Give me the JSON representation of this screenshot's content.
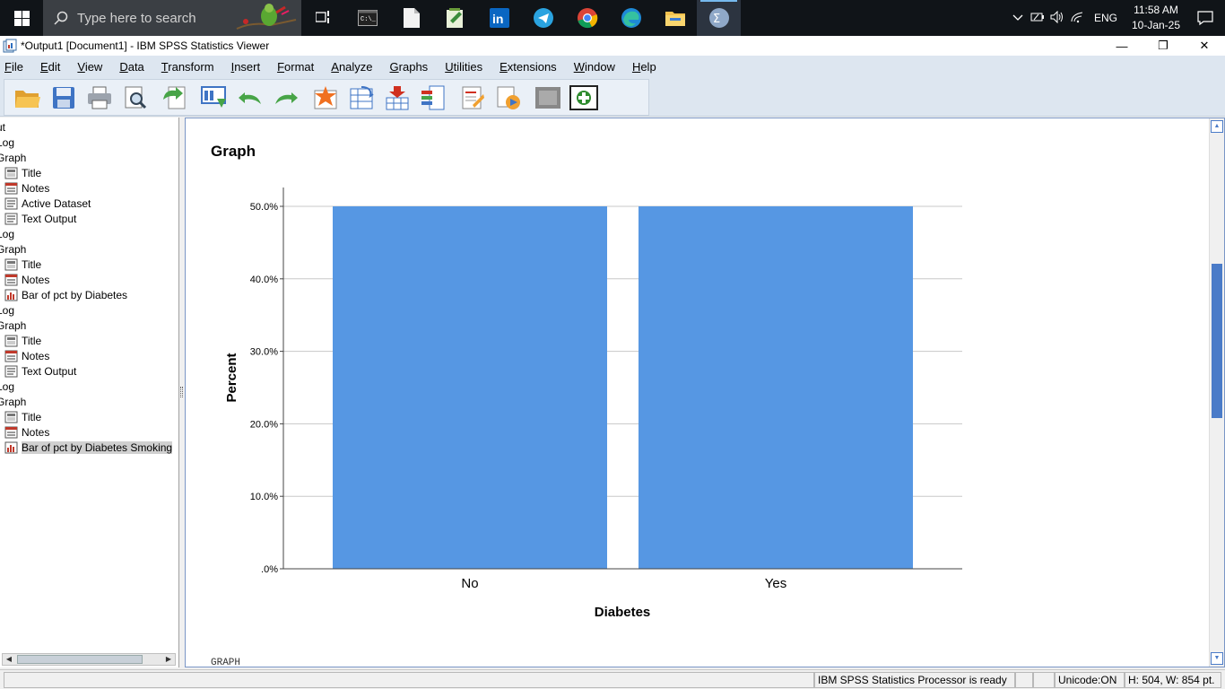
{
  "taskbar": {
    "search_placeholder": "Type here to search",
    "tray": {
      "lang": "ENG",
      "time": "11:58 AM",
      "date": "10-Jan-25"
    }
  },
  "window": {
    "title": "*Output1 [Document1] - IBM SPSS Statistics Viewer",
    "controls": {
      "minimize": "—",
      "restore": "❐",
      "close": "✕"
    }
  },
  "menu": [
    "File",
    "Edit",
    "View",
    "Data",
    "Transform",
    "Insert",
    "Format",
    "Analyze",
    "Graphs",
    "Utilities",
    "Extensions",
    "Window",
    "Help"
  ],
  "outline": {
    "items": [
      {
        "label": "ut",
        "level": 0,
        "icon": ""
      },
      {
        "label": "Log",
        "level": 0,
        "icon": ""
      },
      {
        "label": "Graph",
        "level": 0,
        "icon": ""
      },
      {
        "label": "Title",
        "level": 1,
        "icon": "title-icon"
      },
      {
        "label": "Notes",
        "level": 1,
        "icon": "notes-icon"
      },
      {
        "label": "Active Dataset",
        "level": 1,
        "icon": "text-output-icon"
      },
      {
        "label": "Text Output",
        "level": 1,
        "icon": "text-output-icon"
      },
      {
        "label": "Log",
        "level": 0,
        "icon": ""
      },
      {
        "label": "Graph",
        "level": 0,
        "icon": ""
      },
      {
        "label": "Title",
        "level": 1,
        "icon": "title-icon"
      },
      {
        "label": "Notes",
        "level": 1,
        "icon": "notes-icon"
      },
      {
        "label": "Bar of pct by Diabetes",
        "level": 1,
        "icon": "chart-icon"
      },
      {
        "label": "Log",
        "level": 0,
        "icon": ""
      },
      {
        "label": "Graph",
        "level": 0,
        "icon": ""
      },
      {
        "label": "Title",
        "level": 1,
        "icon": "title-icon"
      },
      {
        "label": "Notes",
        "level": 1,
        "icon": "notes-icon"
      },
      {
        "label": "Text Output",
        "level": 1,
        "icon": "text-output-icon"
      },
      {
        "label": "Log",
        "level": 0,
        "icon": ""
      },
      {
        "label": "Graph",
        "level": 0,
        "icon": ""
      },
      {
        "label": "Title",
        "level": 1,
        "icon": "title-icon"
      },
      {
        "label": "Notes",
        "level": 1,
        "icon": "notes-icon"
      },
      {
        "label": "Bar of pct by Diabetes Smoking",
        "level": 1,
        "icon": "chart-icon",
        "selected": true
      }
    ]
  },
  "content": {
    "heading": "Graph",
    "syntax_text": "GRAPH"
  },
  "chart_data": {
    "type": "bar",
    "categories": [
      "No",
      "Yes"
    ],
    "values": [
      50.0,
      50.0
    ],
    "xlabel": "Diabetes",
    "ylabel": "Percent",
    "ylim": [
      0,
      50
    ],
    "yticks": [
      ".0%",
      "10.0%",
      "20.0%",
      "30.0%",
      "40.0%",
      "50.0%"
    ],
    "grid": true,
    "bar_color": "#5697e3"
  },
  "status": {
    "processor": "IBM SPSS Statistics Processor is ready",
    "unicode": "Unicode:ON",
    "dims": "H: 504, W: 854 pt."
  },
  "colors": {
    "taskbar": "#101418",
    "menubar": "#dde6f0",
    "accent": "#4a7bc8"
  }
}
